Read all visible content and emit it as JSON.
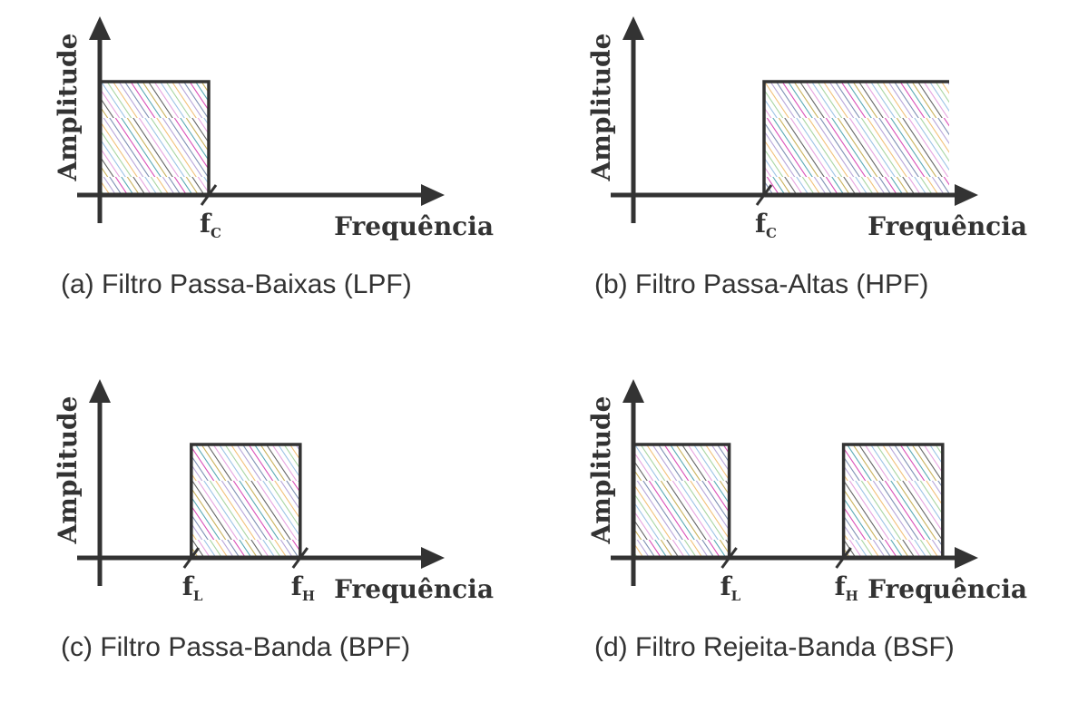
{
  "hatch_colors": [
    "#e6a3e0",
    "#9dc3e6",
    "#a8d5a2",
    "#f2c27a",
    "#b7a6d9",
    "#7f8fb3",
    "#d94fb8",
    "#5aa9b5",
    "#c9b25c",
    "#666666"
  ],
  "axis_color": "#333333",
  "panels": [
    {
      "id": "a",
      "y_axis_label": "Amplitude",
      "x_axis_label": "Frequência",
      "caption": "(a) Filtro Passa-Baixas (LPF)",
      "bands": [
        [
          0,
          1
        ]
      ],
      "markers": [
        {
          "f": "f",
          "sub": "C",
          "at": 1
        }
      ]
    },
    {
      "id": "b",
      "y_axis_label": "Amplitude",
      "x_axis_label": "Frequência",
      "caption": "(b) Filtro Passa-Altas (HPF)",
      "bands": [
        [
          1.2,
          2.9
        ]
      ],
      "markers": [
        {
          "f": "f",
          "sub": "C",
          "at": 1.2
        }
      ]
    },
    {
      "id": "c",
      "y_axis_label": "Amplitude",
      "x_axis_label": "Frequência",
      "caption": "(c) Filtro Passa-Banda (BPF)",
      "bands": [
        [
          0.84,
          1.84
        ]
      ],
      "markers": [
        {
          "f": "f",
          "sub": "L",
          "at": 0.84
        },
        {
          "f": "f",
          "sub": "H",
          "at": 1.84
        }
      ]
    },
    {
      "id": "d",
      "y_axis_label": "Amplitude",
      "x_axis_label": "Frequência",
      "caption": "(d) Filtro Rejeita-Banda (BSF)",
      "bands": [
        [
          0,
          0.88
        ],
        [
          1.93,
          2.84
        ]
      ],
      "markers": [
        {
          "f": "f",
          "sub": "L",
          "at": 0.88
        },
        {
          "f": "f",
          "sub": "H",
          "at": 1.93
        }
      ]
    }
  ]
}
